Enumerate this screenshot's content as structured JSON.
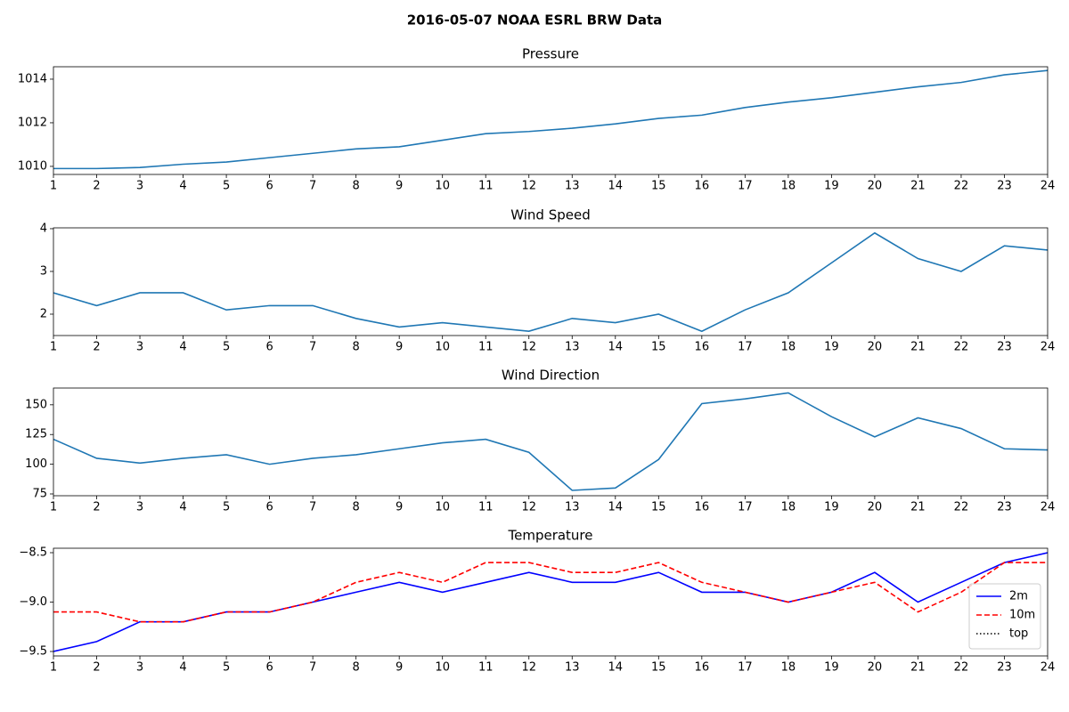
{
  "title": "2016-05-07 NOAA ESRL BRW Data",
  "chart_data": [
    {
      "type": "line",
      "title": "Pressure",
      "x": [
        1,
        2,
        3,
        4,
        5,
        6,
        7,
        8,
        9,
        10,
        11,
        12,
        13,
        14,
        15,
        16,
        17,
        18,
        19,
        20,
        21,
        22,
        23,
        24
      ],
      "series": [
        {
          "name": "Pressure",
          "color": "#1f77b4",
          "dash": "solid",
          "values": [
            1009.9,
            1009.9,
            1009.95,
            1010.1,
            1010.2,
            1010.4,
            1010.6,
            1010.8,
            1010.9,
            1011.2,
            1011.5,
            1011.6,
            1011.75,
            1011.95,
            1012.2,
            1012.35,
            1012.7,
            1012.95,
            1013.15,
            1013.4,
            1013.65,
            1013.85,
            1014.2,
            1014.4
          ]
        }
      ],
      "xlim": [
        1,
        24
      ],
      "xticks": [
        1,
        2,
        3,
        4,
        5,
        6,
        7,
        8,
        9,
        10,
        11,
        12,
        13,
        14,
        15,
        16,
        17,
        18,
        19,
        20,
        21,
        22,
        23,
        24
      ],
      "ylim": [
        1009.63,
        1014.57
      ],
      "yticks": [
        1010,
        1012,
        1014
      ],
      "legend": false
    },
    {
      "type": "line",
      "title": "Wind Speed",
      "x": [
        1,
        2,
        3,
        4,
        5,
        6,
        7,
        8,
        9,
        10,
        11,
        12,
        13,
        14,
        15,
        16,
        17,
        18,
        19,
        20,
        21,
        22,
        23,
        24
      ],
      "series": [
        {
          "name": "Wind Speed",
          "color": "#1f77b4",
          "dash": "solid",
          "values": [
            2.5,
            2.2,
            2.5,
            2.5,
            2.1,
            2.2,
            2.2,
            1.9,
            1.7,
            1.8,
            1.7,
            1.6,
            1.9,
            1.8,
            2.0,
            1.6,
            2.1,
            2.5,
            3.2,
            3.9,
            3.3,
            3.0,
            3.6,
            3.5
          ]
        }
      ],
      "xlim": [
        1,
        24
      ],
      "xticks": [
        1,
        2,
        3,
        4,
        5,
        6,
        7,
        8,
        9,
        10,
        11,
        12,
        13,
        14,
        15,
        16,
        17,
        18,
        19,
        20,
        21,
        22,
        23,
        24
      ],
      "ylim": [
        1.5,
        4.02
      ],
      "yticks": [
        2,
        3,
        4
      ],
      "legend": false
    },
    {
      "type": "line",
      "title": "Wind Direction",
      "x": [
        1,
        2,
        3,
        4,
        5,
        6,
        7,
        8,
        9,
        10,
        11,
        12,
        13,
        14,
        15,
        16,
        17,
        18,
        19,
        20,
        21,
        22,
        23,
        24
      ],
      "series": [
        {
          "name": "Wind Direction",
          "color": "#1f77b4",
          "dash": "solid",
          "values": [
            121,
            105,
            101,
            105,
            108,
            100,
            105,
            108,
            113,
            118,
            121,
            110,
            78,
            80,
            104,
            151,
            155,
            160,
            140,
            123,
            139,
            130,
            113,
            112
          ]
        }
      ],
      "xlim": [
        1,
        24
      ],
      "xticks": [
        1,
        2,
        3,
        4,
        5,
        6,
        7,
        8,
        9,
        10,
        11,
        12,
        13,
        14,
        15,
        16,
        17,
        18,
        19,
        20,
        21,
        22,
        23,
        24
      ],
      "ylim": [
        73.5,
        164.1
      ],
      "yticks": [
        75,
        100,
        125,
        150
      ],
      "legend": false
    },
    {
      "type": "line",
      "title": "Temperature",
      "x": [
        1,
        2,
        3,
        4,
        5,
        6,
        7,
        8,
        9,
        10,
        11,
        12,
        13,
        14,
        15,
        16,
        17,
        18,
        19,
        20,
        21,
        22,
        23,
        24
      ],
      "series": [
        {
          "name": "2m",
          "color": "#0000ff",
          "dash": "solid",
          "values": [
            -9.5,
            -9.4,
            -9.2,
            -9.2,
            -9.1,
            -9.1,
            -9.0,
            -8.9,
            -8.8,
            -8.9,
            -8.8,
            -8.7,
            -8.8,
            -8.8,
            -8.7,
            -8.9,
            -8.9,
            -9.0,
            -8.9,
            -8.7,
            -9.0,
            -8.8,
            -8.6,
            -8.5
          ]
        },
        {
          "name": "10m",
          "color": "#ff0000",
          "dash": "dashed",
          "values": [
            -9.1,
            -9.1,
            -9.2,
            -9.2,
            -9.1,
            -9.1,
            -9.0,
            -8.8,
            -8.7,
            -8.8,
            -8.6,
            -8.6,
            -8.7,
            -8.7,
            -8.6,
            -8.8,
            -8.9,
            -9.0,
            -8.9,
            -8.8,
            -9.1,
            -8.9,
            -8.6,
            -8.6
          ]
        },
        {
          "name": "top",
          "color": "#000000",
          "dash": "dotted",
          "values": [
            null,
            null,
            null,
            null,
            null,
            null,
            null,
            null,
            null,
            null,
            null,
            null,
            null,
            null,
            null,
            null,
            null,
            null,
            null,
            null,
            null,
            null,
            null,
            null
          ]
        }
      ],
      "xlim": [
        1,
        24
      ],
      "xticks": [
        1,
        2,
        3,
        4,
        5,
        6,
        7,
        8,
        9,
        10,
        11,
        12,
        13,
        14,
        15,
        16,
        17,
        18,
        19,
        20,
        21,
        22,
        23,
        24
      ],
      "ylim": [
        -9.545,
        -8.455
      ],
      "yticks": [
        {
          "value": -9.5,
          "label": "−9.5"
        },
        {
          "value": -9.0,
          "label": "−9.0"
        },
        {
          "value": -8.5,
          "label": "−8.5"
        }
      ],
      "legend": "lower right"
    }
  ]
}
